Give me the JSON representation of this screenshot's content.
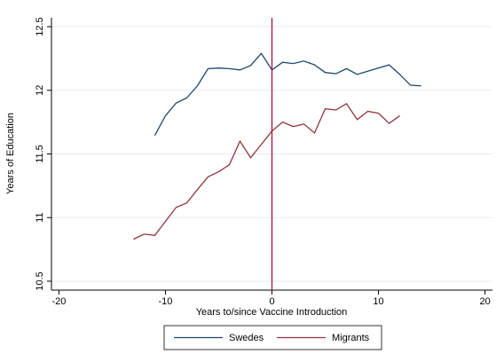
{
  "chart_data": {
    "type": "line",
    "xlabel": "Years to/since Vaccine Introduction",
    "ylabel": "Years of Education",
    "xlim": [
      -20.7,
      20.7
    ],
    "xticks": [
      -20,
      -10,
      0,
      10,
      20
    ],
    "ylim": [
      10.43,
      12.57
    ],
    "yticks": [
      10.5,
      11,
      11.5,
      12,
      12.5
    ],
    "grid": true,
    "vline": 0,
    "vline_color": "#b0103a",
    "legend": "bottom",
    "series": [
      {
        "name": "Swedes",
        "color": "#1a476f",
        "x": [
          -11,
          -10,
          -9,
          -8,
          -7,
          -6,
          -5,
          -4,
          -3,
          -2,
          -1,
          0,
          1,
          2,
          3,
          4,
          5,
          6,
          7,
          8,
          9,
          10,
          11,
          12,
          13,
          14
        ],
        "values": [
          11.645,
          11.8,
          11.9,
          11.94,
          12.035,
          12.17,
          12.175,
          12.17,
          12.16,
          12.195,
          12.29,
          12.16,
          12.22,
          12.21,
          12.23,
          12.2,
          12.14,
          12.13,
          12.17,
          12.125,
          12.15,
          12.175,
          12.2,
          12.125,
          12.04,
          12.035
        ]
      },
      {
        "name": "Migrants",
        "color": "#90353b",
        "x": [
          -13,
          -12,
          -11,
          -10,
          -9,
          -8,
          -7,
          -6,
          -5,
          -4,
          -3,
          -2,
          -1,
          0,
          1,
          2,
          3,
          4,
          5,
          6,
          7,
          8,
          9,
          10,
          11,
          12
        ],
        "values": [
          10.83,
          10.87,
          10.86,
          10.97,
          11.08,
          11.115,
          11.22,
          11.32,
          11.36,
          11.415,
          11.6,
          11.47,
          11.575,
          11.68,
          11.75,
          11.715,
          11.735,
          11.665,
          11.855,
          11.845,
          11.895,
          11.77,
          11.835,
          11.82,
          11.74,
          11.8
        ]
      }
    ]
  }
}
